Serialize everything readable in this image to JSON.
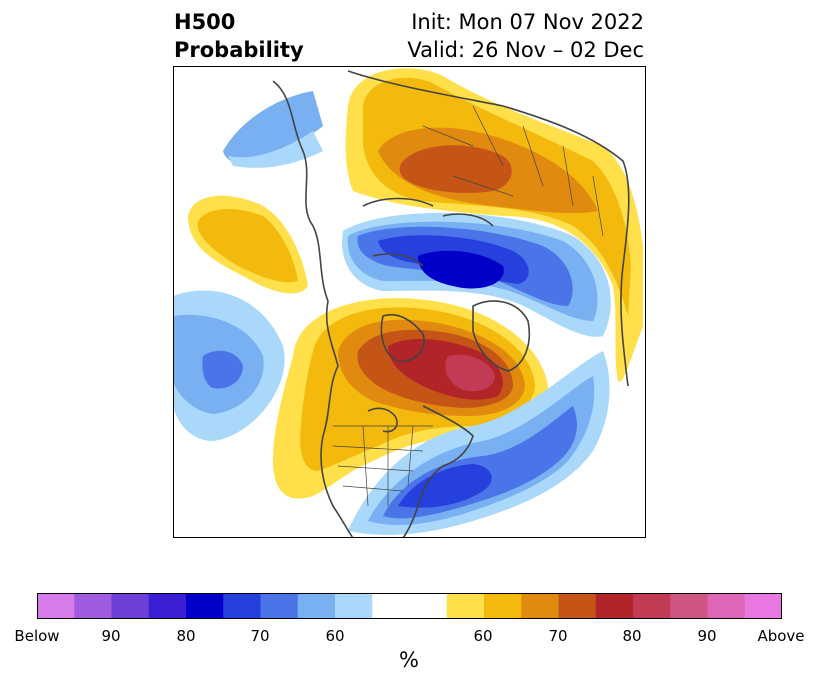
{
  "title": {
    "left_line1": "H500",
    "left_line2": "Probability",
    "right_line1": "Init: Mon 07 Nov 2022",
    "right_line2": "Valid: 26 Nov – 02 Dec"
  },
  "colorbar": {
    "colors": [
      "#d57bea",
      "#a05be0",
      "#6c3fd9",
      "#3a1fd4",
      "#0000c8",
      "#2540dc",
      "#4a74e8",
      "#78b0f2",
      "#a9d8fb",
      "#ffffff",
      "#ffe04a",
      "#f3b90c",
      "#e08a10",
      "#c55516",
      "#b12428",
      "#c23b54",
      "#d05584",
      "#df65b8",
      "#e878e0"
    ],
    "tick_labels": [
      "Below",
      "90",
      "80",
      "70",
      "60",
      "60",
      "70",
      "80",
      "90",
      "Above"
    ],
    "units": "%"
  },
  "map_colors": {
    "blue1": "#a9d8fb",
    "blue2": "#78b0f2",
    "blue3": "#4a74e8",
    "blue4": "#2540dc",
    "blue5": "#0000c8",
    "yel1": "#ffe04a",
    "yel2": "#f3b90c",
    "yel3": "#e08a10",
    "yel4": "#c55516",
    "red1": "#b12428",
    "red2": "#c23b54",
    "coast": "#444444"
  }
}
